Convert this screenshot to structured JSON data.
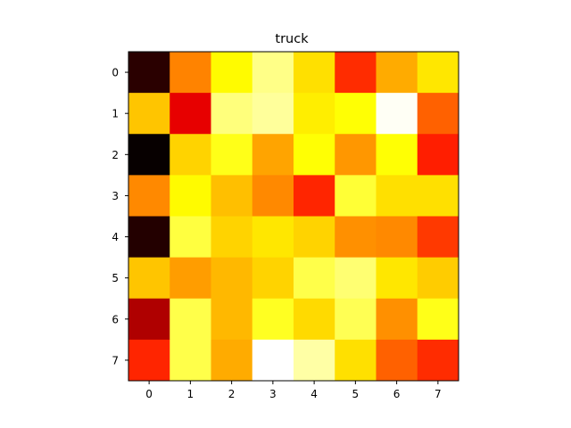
{
  "chart_data": {
    "type": "heatmap",
    "title": "truck",
    "colormap": "hot",
    "x_ticks": [
      "0",
      "1",
      "2",
      "3",
      "4",
      "5",
      "6",
      "7"
    ],
    "y_ticks": [
      "0",
      "1",
      "2",
      "3",
      "4",
      "5",
      "6",
      "7"
    ],
    "xlim": [
      -0.5,
      7.5
    ],
    "ylim": [
      7.5,
      -0.5
    ],
    "grid": false,
    "values": [
      [
        0.06,
        0.56,
        0.74,
        0.88,
        0.7,
        0.43,
        0.62,
        0.71
      ],
      [
        0.66,
        0.33,
        0.87,
        0.9,
        0.72,
        0.75,
        0.99,
        0.51
      ],
      [
        0.01,
        0.68,
        0.77,
        0.61,
        0.75,
        0.59,
        0.75,
        0.41
      ],
      [
        0.57,
        0.74,
        0.65,
        0.57,
        0.42,
        0.8,
        0.7,
        0.7
      ],
      [
        0.05,
        0.81,
        0.68,
        0.71,
        0.68,
        0.58,
        0.57,
        0.45
      ],
      [
        0.66,
        0.6,
        0.64,
        0.68,
        0.82,
        0.86,
        0.71,
        0.67
      ],
      [
        0.25,
        0.82,
        0.64,
        0.78,
        0.69,
        0.83,
        0.58,
        0.77
      ],
      [
        0.42,
        0.82,
        0.62,
        1.0,
        0.91,
        0.7,
        0.51,
        0.43
      ]
    ]
  }
}
